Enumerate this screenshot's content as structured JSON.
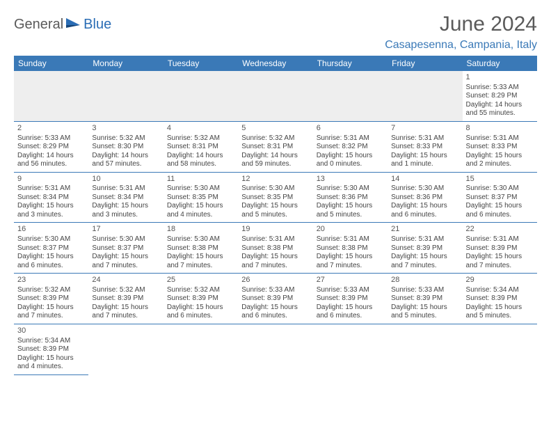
{
  "brand": {
    "part1": "General",
    "part2": "Blue"
  },
  "title": "June 2024",
  "location": "Casapesenna, Campania, Italy",
  "colors": {
    "header_bg": "#3a79b7",
    "header_fg": "#ffffff",
    "row_border": "#3a79b7",
    "blank_bg": "#eeeeee",
    "title_color": "#5a5a5a",
    "location_color": "#3a79b7"
  },
  "day_headers": [
    "Sunday",
    "Monday",
    "Tuesday",
    "Wednesday",
    "Thursday",
    "Friday",
    "Saturday"
  ],
  "weeks": [
    [
      null,
      null,
      null,
      null,
      null,
      null,
      {
        "n": "1",
        "sr": "Sunrise: 5:33 AM",
        "ss": "Sunset: 8:29 PM",
        "dl": "Daylight: 14 hours and 55 minutes."
      }
    ],
    [
      {
        "n": "2",
        "sr": "Sunrise: 5:33 AM",
        "ss": "Sunset: 8:29 PM",
        "dl": "Daylight: 14 hours and 56 minutes."
      },
      {
        "n": "3",
        "sr": "Sunrise: 5:32 AM",
        "ss": "Sunset: 8:30 PM",
        "dl": "Daylight: 14 hours and 57 minutes."
      },
      {
        "n": "4",
        "sr": "Sunrise: 5:32 AM",
        "ss": "Sunset: 8:31 PM",
        "dl": "Daylight: 14 hours and 58 minutes."
      },
      {
        "n": "5",
        "sr": "Sunrise: 5:32 AM",
        "ss": "Sunset: 8:31 PM",
        "dl": "Daylight: 14 hours and 59 minutes."
      },
      {
        "n": "6",
        "sr": "Sunrise: 5:31 AM",
        "ss": "Sunset: 8:32 PM",
        "dl": "Daylight: 15 hours and 0 minutes."
      },
      {
        "n": "7",
        "sr": "Sunrise: 5:31 AM",
        "ss": "Sunset: 8:33 PM",
        "dl": "Daylight: 15 hours and 1 minute."
      },
      {
        "n": "8",
        "sr": "Sunrise: 5:31 AM",
        "ss": "Sunset: 8:33 PM",
        "dl": "Daylight: 15 hours and 2 minutes."
      }
    ],
    [
      {
        "n": "9",
        "sr": "Sunrise: 5:31 AM",
        "ss": "Sunset: 8:34 PM",
        "dl": "Daylight: 15 hours and 3 minutes."
      },
      {
        "n": "10",
        "sr": "Sunrise: 5:31 AM",
        "ss": "Sunset: 8:34 PM",
        "dl": "Daylight: 15 hours and 3 minutes."
      },
      {
        "n": "11",
        "sr": "Sunrise: 5:30 AM",
        "ss": "Sunset: 8:35 PM",
        "dl": "Daylight: 15 hours and 4 minutes."
      },
      {
        "n": "12",
        "sr": "Sunrise: 5:30 AM",
        "ss": "Sunset: 8:35 PM",
        "dl": "Daylight: 15 hours and 5 minutes."
      },
      {
        "n": "13",
        "sr": "Sunrise: 5:30 AM",
        "ss": "Sunset: 8:36 PM",
        "dl": "Daylight: 15 hours and 5 minutes."
      },
      {
        "n": "14",
        "sr": "Sunrise: 5:30 AM",
        "ss": "Sunset: 8:36 PM",
        "dl": "Daylight: 15 hours and 6 minutes."
      },
      {
        "n": "15",
        "sr": "Sunrise: 5:30 AM",
        "ss": "Sunset: 8:37 PM",
        "dl": "Daylight: 15 hours and 6 minutes."
      }
    ],
    [
      {
        "n": "16",
        "sr": "Sunrise: 5:30 AM",
        "ss": "Sunset: 8:37 PM",
        "dl": "Daylight: 15 hours and 6 minutes."
      },
      {
        "n": "17",
        "sr": "Sunrise: 5:30 AM",
        "ss": "Sunset: 8:37 PM",
        "dl": "Daylight: 15 hours and 7 minutes."
      },
      {
        "n": "18",
        "sr": "Sunrise: 5:30 AM",
        "ss": "Sunset: 8:38 PM",
        "dl": "Daylight: 15 hours and 7 minutes."
      },
      {
        "n": "19",
        "sr": "Sunrise: 5:31 AM",
        "ss": "Sunset: 8:38 PM",
        "dl": "Daylight: 15 hours and 7 minutes."
      },
      {
        "n": "20",
        "sr": "Sunrise: 5:31 AM",
        "ss": "Sunset: 8:38 PM",
        "dl": "Daylight: 15 hours and 7 minutes."
      },
      {
        "n": "21",
        "sr": "Sunrise: 5:31 AM",
        "ss": "Sunset: 8:39 PM",
        "dl": "Daylight: 15 hours and 7 minutes."
      },
      {
        "n": "22",
        "sr": "Sunrise: 5:31 AM",
        "ss": "Sunset: 8:39 PM",
        "dl": "Daylight: 15 hours and 7 minutes."
      }
    ],
    [
      {
        "n": "23",
        "sr": "Sunrise: 5:32 AM",
        "ss": "Sunset: 8:39 PM",
        "dl": "Daylight: 15 hours and 7 minutes."
      },
      {
        "n": "24",
        "sr": "Sunrise: 5:32 AM",
        "ss": "Sunset: 8:39 PM",
        "dl": "Daylight: 15 hours and 7 minutes."
      },
      {
        "n": "25",
        "sr": "Sunrise: 5:32 AM",
        "ss": "Sunset: 8:39 PM",
        "dl": "Daylight: 15 hours and 6 minutes."
      },
      {
        "n": "26",
        "sr": "Sunrise: 5:33 AM",
        "ss": "Sunset: 8:39 PM",
        "dl": "Daylight: 15 hours and 6 minutes."
      },
      {
        "n": "27",
        "sr": "Sunrise: 5:33 AM",
        "ss": "Sunset: 8:39 PM",
        "dl": "Daylight: 15 hours and 6 minutes."
      },
      {
        "n": "28",
        "sr": "Sunrise: 5:33 AM",
        "ss": "Sunset: 8:39 PM",
        "dl": "Daylight: 15 hours and 5 minutes."
      },
      {
        "n": "29",
        "sr": "Sunrise: 5:34 AM",
        "ss": "Sunset: 8:39 PM",
        "dl": "Daylight: 15 hours and 5 minutes."
      }
    ],
    [
      {
        "n": "30",
        "sr": "Sunrise: 5:34 AM",
        "ss": "Sunset: 8:39 PM",
        "dl": "Daylight: 15 hours and 4 minutes."
      },
      null,
      null,
      null,
      null,
      null,
      null
    ]
  ]
}
